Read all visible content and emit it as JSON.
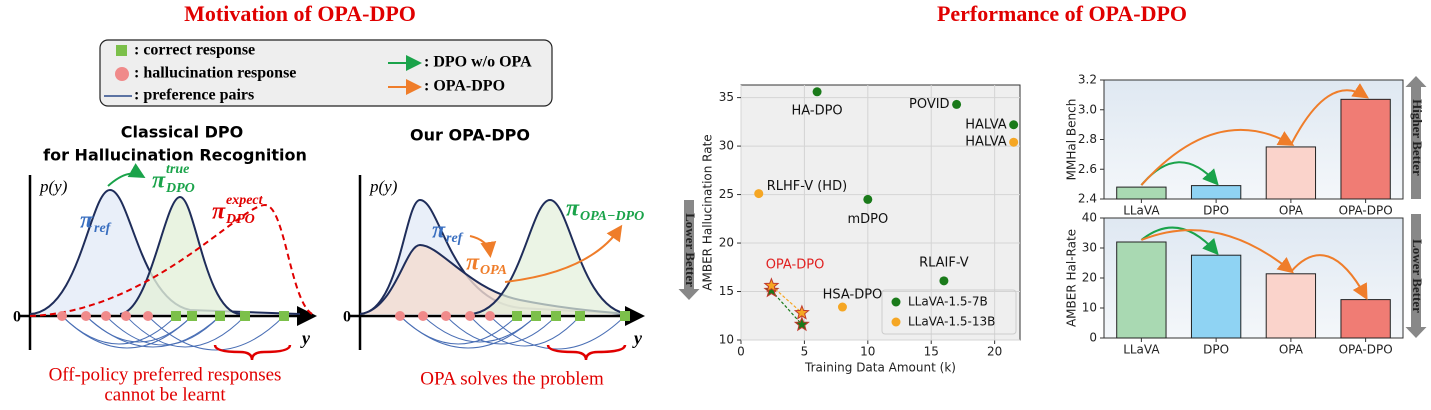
{
  "header": {
    "left_title": "Motivation of OPA-DPO",
    "right_title": "Performance of OPA-DPO"
  },
  "motivation": {
    "legend": {
      "correct": ": correct response",
      "hallucination": ": hallucination response",
      "pairs": ": preference pairs",
      "dpo": ": DPO w/o OPA",
      "opa_dpo": ": OPA-DPO"
    },
    "classical": {
      "title": [
        "Classical DPO",
        "for Hallucination Recognition"
      ],
      "y_axis": "p(y)",
      "origin": "0",
      "x_axis": "y",
      "pi_ref": {
        "symbol": "π",
        "sub": "ref"
      },
      "pi_true": {
        "symbol": "π",
        "sup": "true",
        "sub": "DPO"
      },
      "pi_expect": {
        "symbol": "π",
        "sup": "expect",
        "sub": "DPO"
      },
      "caption": [
        "Off-policy preferred responses",
        "cannot be learnt"
      ]
    },
    "ours": {
      "title": "Our OPA-DPO",
      "y_axis": "p(y)",
      "origin": "0",
      "x_axis": "y",
      "pi_ref": {
        "symbol": "π",
        "sub": "ref"
      },
      "pi_opa": {
        "symbol": "π",
        "sub": "OPA"
      },
      "pi_opa_dpo": {
        "symbol": "π",
        "sub": "OPA−DPO"
      },
      "caption": "OPA solves the problem"
    }
  },
  "chart_data": [
    {
      "type": "scatter",
      "xlabel": "Training Data Amount (k)",
      "ylabel": "AMBER Hallucination Rate",
      "side_note": "Lower Better",
      "xlim": [
        0,
        22
      ],
      "ylim": [
        10,
        36.3
      ],
      "xticks": [
        0,
        5,
        10,
        15,
        20
      ],
      "yticks": [
        10,
        15,
        20,
        25,
        30,
        35
      ],
      "grid": true,
      "legend": "lower right",
      "annotation": "OPA-DPO",
      "annotation_color": "#e02020",
      "series": [
        {
          "name": "LLaVA-1.5-7B",
          "color": "#1a7a1a",
          "x": [
            6,
            17,
            21.5,
            10,
            16,
            2.4,
            4.8
          ],
          "values": [
            35.6,
            34.3,
            32.2,
            24.5,
            16.1,
            15.1,
            11.6
          ],
          "point_labels": [
            "HA-DPO",
            "POVID",
            "HALVA",
            "mDPO",
            "RLAIF-V",
            null,
            null
          ],
          "markers": [
            "circle",
            "circle",
            "circle",
            "circle",
            "circle",
            "star",
            "star"
          ]
        },
        {
          "name": "LLaVA-1.5-13B",
          "color": "#f5a623",
          "x": [
            21.5,
            1.4,
            8,
            2.4,
            4.8
          ],
          "values": [
            30.4,
            25.1,
            13.4,
            15.6,
            12.8
          ],
          "point_labels": [
            "HALVA",
            "RLHF-V (HD)",
            "HSA-DPO",
            null,
            null
          ],
          "markers": [
            "circle",
            "circle",
            "circle",
            "star",
            "star"
          ]
        }
      ]
    },
    {
      "type": "bar",
      "ylabel": "MMHal Bench",
      "side_note": "Higher Better",
      "categories": [
        "LLaVA",
        "DPO",
        "OPA",
        "OPA-DPO"
      ],
      "values": [
        2.48,
        2.49,
        2.75,
        3.07
      ],
      "colors": [
        "#a9d9b2",
        "#8fd3f3",
        "#fad3cb",
        "#f07c74"
      ],
      "ylim": [
        2.4,
        3.2
      ],
      "yticks": [
        2.4,
        2.6,
        2.8,
        {
          "value": 3,
          "label": "3.0"
        },
        3.2
      ]
    },
    {
      "type": "bar",
      "ylabel": "AMBER Hal-Rate",
      "side_note": "Lower Better",
      "categories": [
        "LLaVA",
        "DPO",
        "OPA",
        "OPA-DPO"
      ],
      "values": [
        32.0,
        27.6,
        21.4,
        12.8
      ],
      "colors": [
        "#a9d9b2",
        "#8fd3f3",
        "#fad3cb",
        "#f07c74"
      ],
      "ylim": [
        0,
        40
      ],
      "yticks": [
        0,
        10,
        20,
        30,
        40
      ]
    }
  ]
}
